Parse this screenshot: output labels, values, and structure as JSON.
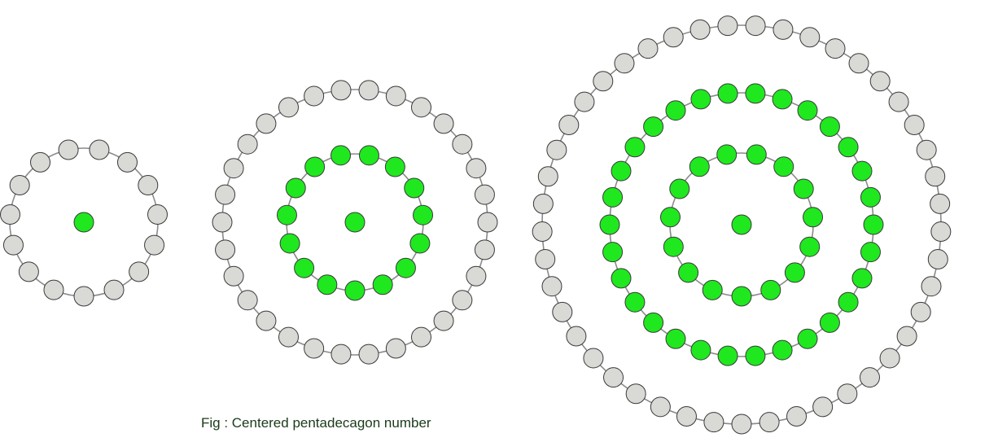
{
  "caption": "Fig : Centered pentadecagon number",
  "colors": {
    "gray_dot": "#d9d9d6",
    "green_dot": "#1fe81f",
    "outline": "#3a3a3a",
    "link": "#8a8a8a",
    "caption": "#1a3a1a"
  },
  "figures": [
    {
      "name": "figure-1",
      "center_dot_color": "green",
      "rings": [
        {
          "level": 1,
          "dot_count": 15,
          "color": "gray"
        }
      ],
      "total_dots": 16
    },
    {
      "name": "figure-2",
      "center_dot_color": "green",
      "rings": [
        {
          "level": 1,
          "dot_count": 15,
          "color": "green"
        },
        {
          "level": 2,
          "dot_count": 30,
          "color": "gray"
        }
      ],
      "total_dots": 46
    },
    {
      "name": "figure-3",
      "center_dot_color": "green",
      "rings": [
        {
          "level": 1,
          "dot_count": 15,
          "color": "green"
        },
        {
          "level": 2,
          "dot_count": 30,
          "color": "green"
        },
        {
          "level": 3,
          "dot_count": 45,
          "color": "gray"
        }
      ],
      "total_dots": 91
    }
  ]
}
